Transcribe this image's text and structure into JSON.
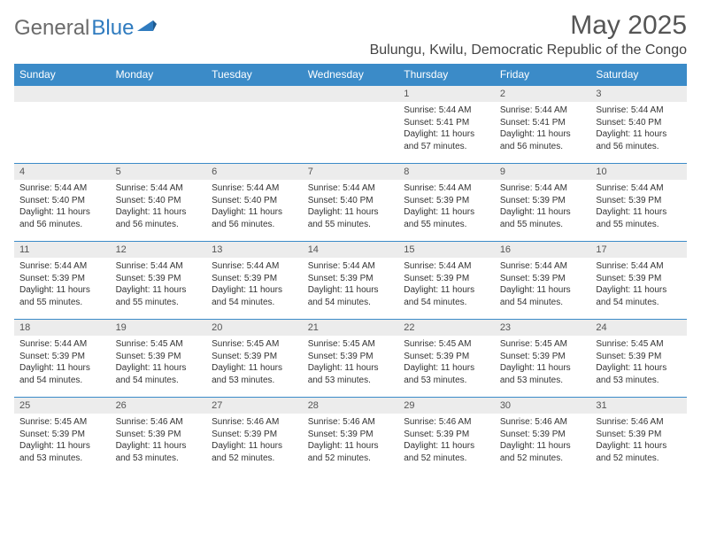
{
  "logo": {
    "part1": "General",
    "part2": "Blue"
  },
  "title": "May 2025",
  "location": "Bulungu, Kwilu, Democratic Republic of the Congo",
  "colors": {
    "header_bg": "#3b8bc8",
    "header_text": "#ffffff",
    "daynum_bg": "#ececec",
    "border": "#3b8bc8",
    "logo_gray": "#6b6b6b",
    "logo_blue": "#2f7bbf"
  },
  "weekdays": [
    "Sunday",
    "Monday",
    "Tuesday",
    "Wednesday",
    "Thursday",
    "Friday",
    "Saturday"
  ],
  "weeks": [
    [
      {
        "empty": true
      },
      {
        "empty": true
      },
      {
        "empty": true
      },
      {
        "empty": true
      },
      {
        "num": "1",
        "sunrise": "Sunrise: 5:44 AM",
        "sunset": "Sunset: 5:41 PM",
        "daylight": "Daylight: 11 hours and 57 minutes."
      },
      {
        "num": "2",
        "sunrise": "Sunrise: 5:44 AM",
        "sunset": "Sunset: 5:41 PM",
        "daylight": "Daylight: 11 hours and 56 minutes."
      },
      {
        "num": "3",
        "sunrise": "Sunrise: 5:44 AM",
        "sunset": "Sunset: 5:40 PM",
        "daylight": "Daylight: 11 hours and 56 minutes."
      }
    ],
    [
      {
        "num": "4",
        "sunrise": "Sunrise: 5:44 AM",
        "sunset": "Sunset: 5:40 PM",
        "daylight": "Daylight: 11 hours and 56 minutes."
      },
      {
        "num": "5",
        "sunrise": "Sunrise: 5:44 AM",
        "sunset": "Sunset: 5:40 PM",
        "daylight": "Daylight: 11 hours and 56 minutes."
      },
      {
        "num": "6",
        "sunrise": "Sunrise: 5:44 AM",
        "sunset": "Sunset: 5:40 PM",
        "daylight": "Daylight: 11 hours and 56 minutes."
      },
      {
        "num": "7",
        "sunrise": "Sunrise: 5:44 AM",
        "sunset": "Sunset: 5:40 PM",
        "daylight": "Daylight: 11 hours and 55 minutes."
      },
      {
        "num": "8",
        "sunrise": "Sunrise: 5:44 AM",
        "sunset": "Sunset: 5:39 PM",
        "daylight": "Daylight: 11 hours and 55 minutes."
      },
      {
        "num": "9",
        "sunrise": "Sunrise: 5:44 AM",
        "sunset": "Sunset: 5:39 PM",
        "daylight": "Daylight: 11 hours and 55 minutes."
      },
      {
        "num": "10",
        "sunrise": "Sunrise: 5:44 AM",
        "sunset": "Sunset: 5:39 PM",
        "daylight": "Daylight: 11 hours and 55 minutes."
      }
    ],
    [
      {
        "num": "11",
        "sunrise": "Sunrise: 5:44 AM",
        "sunset": "Sunset: 5:39 PM",
        "daylight": "Daylight: 11 hours and 55 minutes."
      },
      {
        "num": "12",
        "sunrise": "Sunrise: 5:44 AM",
        "sunset": "Sunset: 5:39 PM",
        "daylight": "Daylight: 11 hours and 55 minutes."
      },
      {
        "num": "13",
        "sunrise": "Sunrise: 5:44 AM",
        "sunset": "Sunset: 5:39 PM",
        "daylight": "Daylight: 11 hours and 54 minutes."
      },
      {
        "num": "14",
        "sunrise": "Sunrise: 5:44 AM",
        "sunset": "Sunset: 5:39 PM",
        "daylight": "Daylight: 11 hours and 54 minutes."
      },
      {
        "num": "15",
        "sunrise": "Sunrise: 5:44 AM",
        "sunset": "Sunset: 5:39 PM",
        "daylight": "Daylight: 11 hours and 54 minutes."
      },
      {
        "num": "16",
        "sunrise": "Sunrise: 5:44 AM",
        "sunset": "Sunset: 5:39 PM",
        "daylight": "Daylight: 11 hours and 54 minutes."
      },
      {
        "num": "17",
        "sunrise": "Sunrise: 5:44 AM",
        "sunset": "Sunset: 5:39 PM",
        "daylight": "Daylight: 11 hours and 54 minutes."
      }
    ],
    [
      {
        "num": "18",
        "sunrise": "Sunrise: 5:44 AM",
        "sunset": "Sunset: 5:39 PM",
        "daylight": "Daylight: 11 hours and 54 minutes."
      },
      {
        "num": "19",
        "sunrise": "Sunrise: 5:45 AM",
        "sunset": "Sunset: 5:39 PM",
        "daylight": "Daylight: 11 hours and 54 minutes."
      },
      {
        "num": "20",
        "sunrise": "Sunrise: 5:45 AM",
        "sunset": "Sunset: 5:39 PM",
        "daylight": "Daylight: 11 hours and 53 minutes."
      },
      {
        "num": "21",
        "sunrise": "Sunrise: 5:45 AM",
        "sunset": "Sunset: 5:39 PM",
        "daylight": "Daylight: 11 hours and 53 minutes."
      },
      {
        "num": "22",
        "sunrise": "Sunrise: 5:45 AM",
        "sunset": "Sunset: 5:39 PM",
        "daylight": "Daylight: 11 hours and 53 minutes."
      },
      {
        "num": "23",
        "sunrise": "Sunrise: 5:45 AM",
        "sunset": "Sunset: 5:39 PM",
        "daylight": "Daylight: 11 hours and 53 minutes."
      },
      {
        "num": "24",
        "sunrise": "Sunrise: 5:45 AM",
        "sunset": "Sunset: 5:39 PM",
        "daylight": "Daylight: 11 hours and 53 minutes."
      }
    ],
    [
      {
        "num": "25",
        "sunrise": "Sunrise: 5:45 AM",
        "sunset": "Sunset: 5:39 PM",
        "daylight": "Daylight: 11 hours and 53 minutes."
      },
      {
        "num": "26",
        "sunrise": "Sunrise: 5:46 AM",
        "sunset": "Sunset: 5:39 PM",
        "daylight": "Daylight: 11 hours and 53 minutes."
      },
      {
        "num": "27",
        "sunrise": "Sunrise: 5:46 AM",
        "sunset": "Sunset: 5:39 PM",
        "daylight": "Daylight: 11 hours and 52 minutes."
      },
      {
        "num": "28",
        "sunrise": "Sunrise: 5:46 AM",
        "sunset": "Sunset: 5:39 PM",
        "daylight": "Daylight: 11 hours and 52 minutes."
      },
      {
        "num": "29",
        "sunrise": "Sunrise: 5:46 AM",
        "sunset": "Sunset: 5:39 PM",
        "daylight": "Daylight: 11 hours and 52 minutes."
      },
      {
        "num": "30",
        "sunrise": "Sunrise: 5:46 AM",
        "sunset": "Sunset: 5:39 PM",
        "daylight": "Daylight: 11 hours and 52 minutes."
      },
      {
        "num": "31",
        "sunrise": "Sunrise: 5:46 AM",
        "sunset": "Sunset: 5:39 PM",
        "daylight": "Daylight: 11 hours and 52 minutes."
      }
    ]
  ]
}
